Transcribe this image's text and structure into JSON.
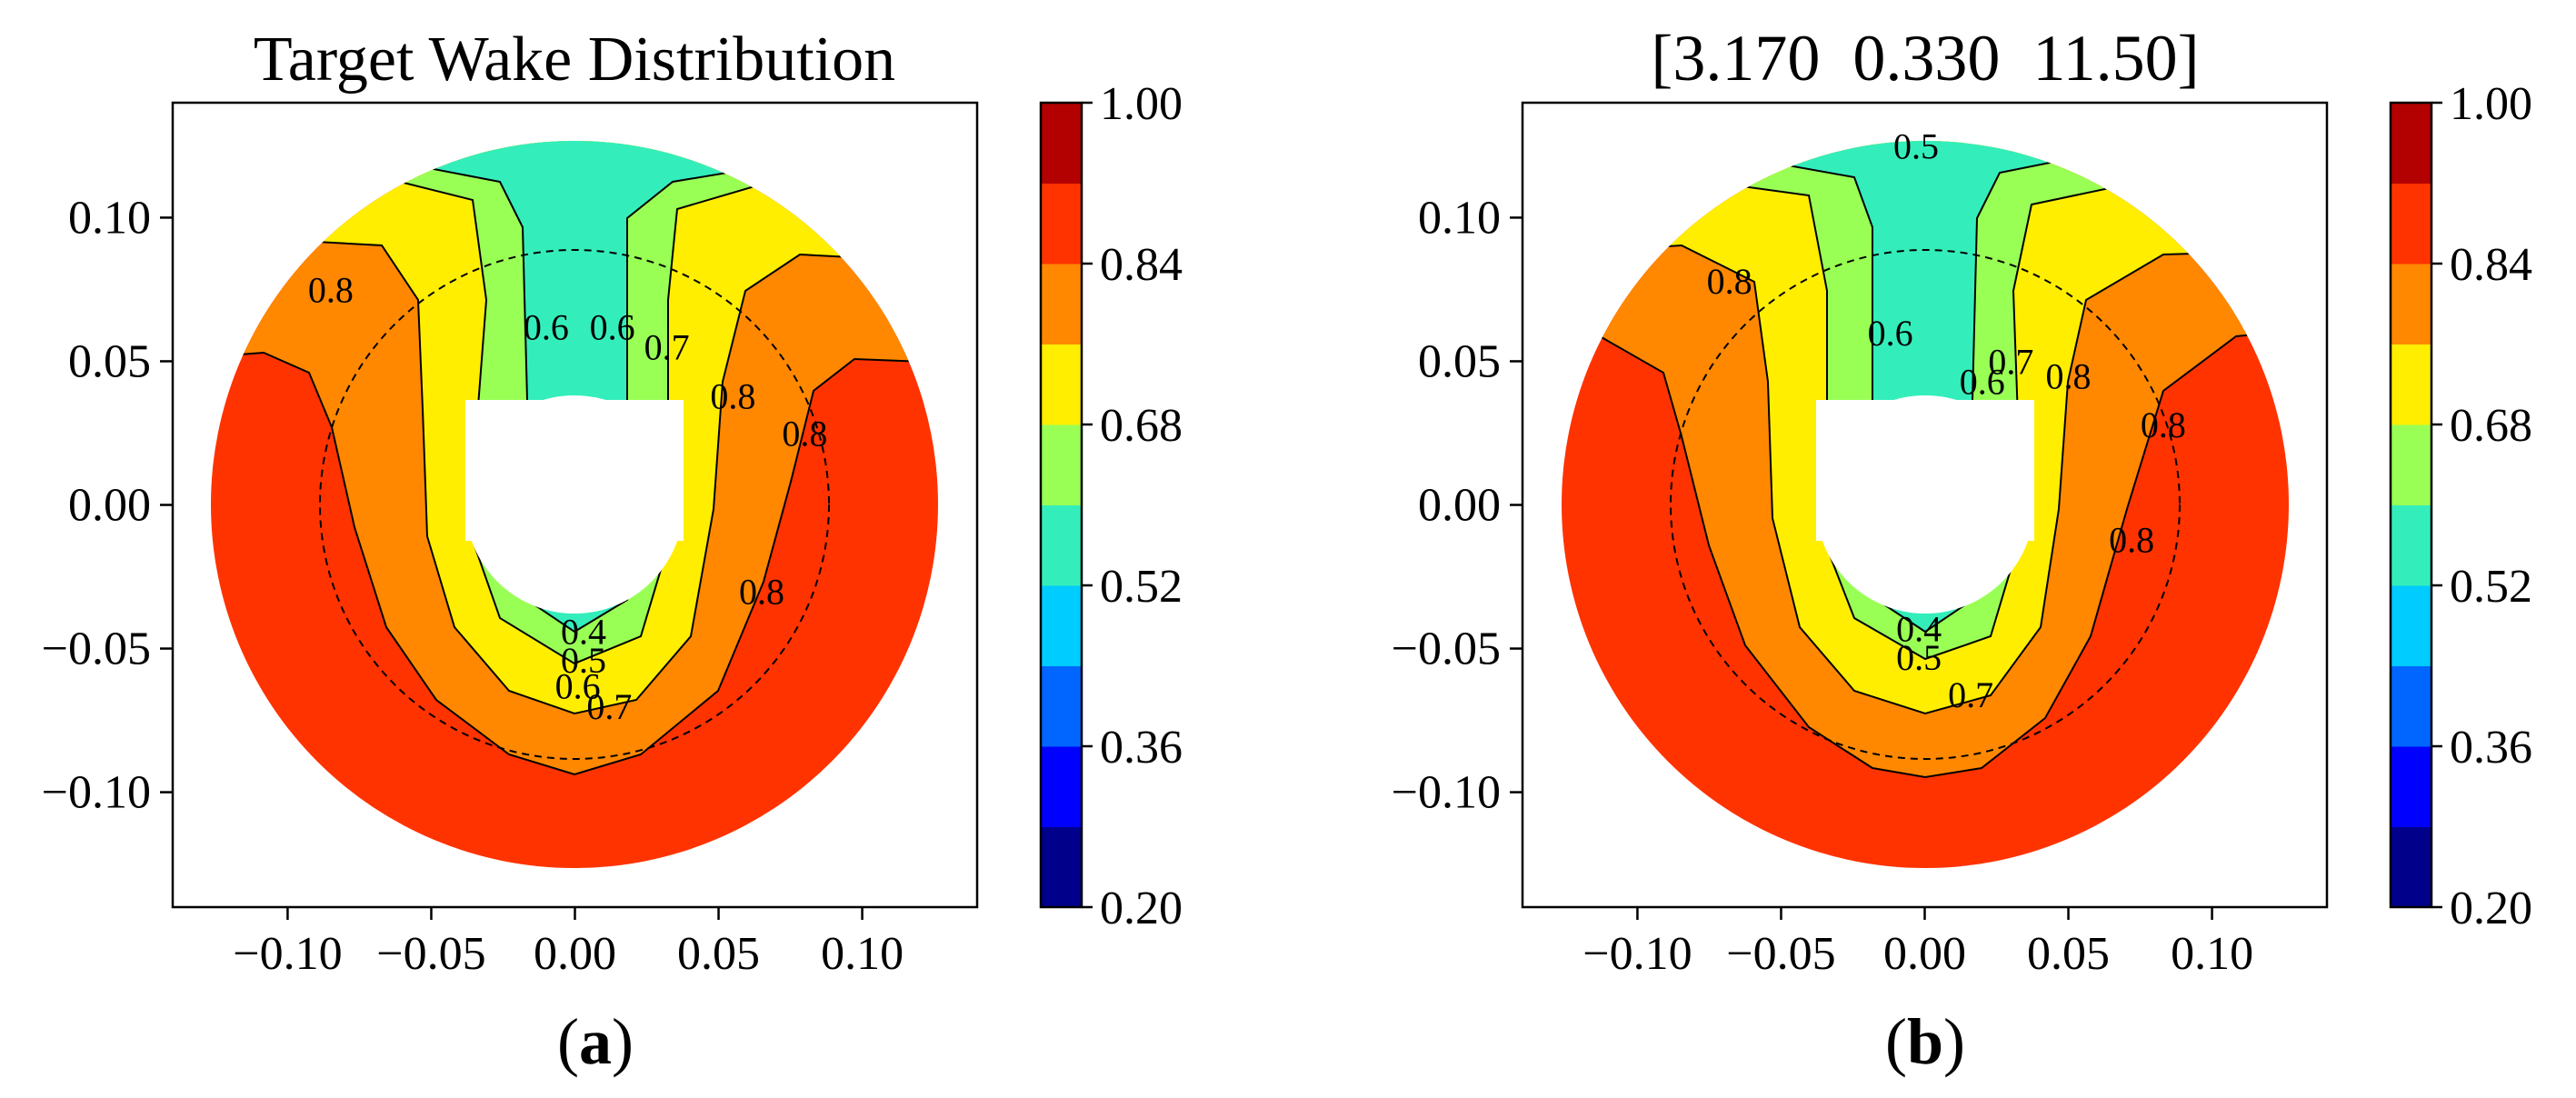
{
  "chart_data": [
    {
      "type": "contourf",
      "panel_label": "(a)",
      "panel_letter": "a",
      "title": "Target Wake Distribution",
      "xlim": [
        -0.14,
        0.14
      ],
      "ylim": [
        -0.14,
        0.14
      ],
      "x_ticks": [
        -0.1,
        -0.05,
        0.0,
        0.05,
        0.1
      ],
      "x_tick_labels": [
        "−0.10",
        "−0.05",
        "0.00",
        "0.05",
        "0.10"
      ],
      "y_ticks": [
        0.1,
        0.05,
        0.0,
        -0.05,
        -0.1
      ],
      "y_tick_labels": [
        "0.10",
        "0.05",
        "0.00",
        "−0.05",
        "−0.10"
      ],
      "outer_radius": 0.127,
      "hub_radius": 0.038,
      "dashed_circle_radius": 0.089,
      "contour_labels": [
        {
          "text": "0.8",
          "x": -0.085,
          "y": 0.075
        },
        {
          "text": "0.6",
          "x": -0.01,
          "y": 0.062
        },
        {
          "text": "0.6",
          "x": 0.013,
          "y": 0.062
        },
        {
          "text": "0.7",
          "x": 0.032,
          "y": 0.055
        },
        {
          "text": "0.8",
          "x": 0.055,
          "y": 0.038
        },
        {
          "text": "0.8",
          "x": 0.08,
          "y": 0.025
        },
        {
          "text": "0.8",
          "x": 0.065,
          "y": -0.03
        },
        {
          "text": "0.4",
          "x": 0.003,
          "y": -0.044
        },
        {
          "text": "0.5",
          "x": 0.003,
          "y": -0.054
        },
        {
          "text": "0.6",
          "x": 0.001,
          "y": -0.063
        },
        {
          "text": "0.7",
          "x": 0.012,
          "y": -0.07
        }
      ]
    },
    {
      "type": "contourf",
      "panel_label": "(b)",
      "panel_letter": "b",
      "title": "[3.170  0.330  11.50]",
      "xlim": [
        -0.14,
        0.14
      ],
      "ylim": [
        -0.14,
        0.14
      ],
      "x_ticks": [
        -0.1,
        -0.05,
        0.0,
        0.05,
        0.1
      ],
      "x_tick_labels": [
        "−0.10",
        "−0.05",
        "0.00",
        "0.05",
        "0.10"
      ],
      "y_ticks": [
        0.1,
        0.05,
        0.0,
        -0.05,
        -0.1
      ],
      "y_tick_labels": [
        "0.10",
        "0.05",
        "0.00",
        "−0.05",
        "−0.10"
      ],
      "outer_radius": 0.127,
      "hub_radius": 0.038,
      "dashed_circle_radius": 0.089,
      "contour_labels": [
        {
          "text": "0.5",
          "x": -0.003,
          "y": 0.125
        },
        {
          "text": "0.8",
          "x": -0.068,
          "y": 0.078
        },
        {
          "text": "0.6",
          "x": -0.012,
          "y": 0.06
        },
        {
          "text": "0.7",
          "x": 0.03,
          "y": 0.05
        },
        {
          "text": "0.6",
          "x": 0.02,
          "y": 0.043
        },
        {
          "text": "0.8",
          "x": 0.05,
          "y": 0.045
        },
        {
          "text": "0.8",
          "x": 0.083,
          "y": 0.028
        },
        {
          "text": "0.8",
          "x": 0.072,
          "y": -0.012
        },
        {
          "text": "0.4",
          "x": -0.002,
          "y": -0.043
        },
        {
          "text": "0.5",
          "x": -0.002,
          "y": -0.053
        },
        {
          "text": "0.7",
          "x": 0.016,
          "y": -0.066
        }
      ]
    }
  ],
  "colorbar": {
    "colors": [
      "#00008b",
      "#0000ff",
      "#0066ff",
      "#00ccff",
      "#33eebb",
      "#99ff55",
      "#ffee00",
      "#ff8800",
      "#ff3300",
      "#b30000"
    ],
    "tick_values": [
      0.2,
      0.36,
      0.52,
      0.68,
      0.84,
      1.0
    ],
    "tick_labels": [
      "0.20",
      "0.36",
      "0.52",
      "0.68",
      "0.84",
      "1.00"
    ],
    "range": [
      0.2,
      1.0
    ]
  },
  "field_colors": {
    "red": "#ff3300",
    "orange": "#ff8800",
    "yellow": "#ffee00",
    "light_green": "#99ff55",
    "teal": "#33eebb",
    "cyan": "#00ccff",
    "blue": "#0066ff"
  }
}
